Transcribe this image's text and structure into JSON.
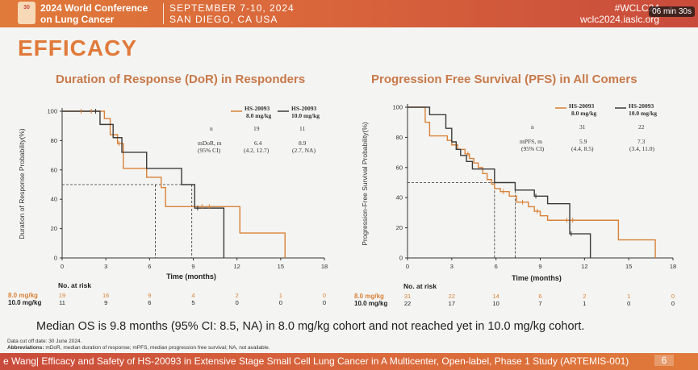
{
  "header": {
    "logo_text": "30",
    "conference_title": "2024 World Conference on Lung Cancer",
    "dates": "SEPTEMBER 7-10, 2024",
    "location": "SAN DIEGO, CA USA",
    "hashtag": "#WCLC24",
    "website": "wclc2024.iaslc.org",
    "timer": "06 min 30s"
  },
  "slide_title": "EFFICACY",
  "colors": {
    "orange": "#d8823a",
    "dark": "#3b3b3b",
    "accent": "#e07a3a"
  },
  "dor": {
    "title": "Duration of Response (DoR) in Responders",
    "y_label": "Duration of Response Probability(%)",
    "x_label": "Time (months)",
    "table": {
      "col1": "HS-20093\n8.0 mg/kg",
      "col1_line1": "HS-20093",
      "col1_line2": "8.0 mg/kg",
      "col2_line1": "HS-20093",
      "col2_line2": "10.0 mg/kg",
      "row_n_label": "n",
      "n1": "19",
      "n2": "11",
      "row_m_label1": "mDoR, m",
      "row_m_label2": "(95% CI)",
      "m1": "6.4",
      "ci1": "(4.2, 12.7)",
      "m2": "8.9",
      "ci2": "(2.7, NA)"
    },
    "risk_title": "No. at risk",
    "risk_rows": [
      {
        "label": "8.0 mg/kg",
        "values": [
          "19",
          "16",
          "9",
          "4",
          "2",
          "1",
          "0"
        ]
      },
      {
        "label": "10.0 mg/kg",
        "values": [
          "11",
          "9",
          "6",
          "5",
          "0",
          "0",
          "0"
        ]
      }
    ]
  },
  "pfs": {
    "title": "Progression Free Survival (PFS) in All Comers",
    "y_label": "Progression-Free Survival Probability(%)",
    "x_label": "Time (months)",
    "table": {
      "col1_line1": "HS-20093",
      "col1_line2": "8.0 mg/kg",
      "col2_line1": "HS-20093",
      "col2_line2": "10.0 mg/kg",
      "row_n_label": "n",
      "n1": "31",
      "n2": "22",
      "row_m_label1": "mPFS, m",
      "row_m_label2": "(95% CI)",
      "m1": "5.9",
      "ci1": "(4.4, 8.5)",
      "m2": "7.3",
      "ci2": "(3.4, 11.0)"
    },
    "risk_title": "No. at risk",
    "risk_rows": [
      {
        "label": "8.0 mg/kg",
        "values": [
          "31",
          "22",
          "14",
          "6",
          "2",
          "1",
          "0"
        ]
      },
      {
        "label": "10.0 mg/kg",
        "values": [
          "22",
          "17",
          "10",
          "7",
          "1",
          "0",
          "0"
        ]
      }
    ]
  },
  "chart_data": [
    {
      "type": "line",
      "title": "Duration of Response (DoR) in Responders",
      "xlabel": "Time (months)",
      "ylabel": "Duration of Response Probability(%)",
      "xlim": [
        0,
        18
      ],
      "ylim": [
        0,
        100
      ],
      "xticks": [
        "0",
        "3",
        "6",
        "9",
        "12",
        "15",
        "18"
      ],
      "yticks": [
        "0",
        "20",
        "40",
        "60",
        "80",
        "100"
      ],
      "median_line": 50,
      "series": [
        {
          "name": "HS-20093 8.0 mg/kg",
          "color": "#d8823a",
          "x": [
            0,
            2.9,
            3.3,
            3.8,
            4.2,
            5.8,
            6.8,
            7.1,
            12.2,
            15.3
          ],
          "y": [
            100,
            95,
            84,
            78,
            61,
            55,
            48,
            35,
            17,
            0
          ]
        },
        {
          "name": "HS-20093 10.0 mg/kg",
          "color": "#3b3b3b",
          "x": [
            0,
            2.6,
            3.5,
            4.1,
            5.8,
            8.2,
            9.1,
            11.1
          ],
          "y": [
            100,
            91,
            82,
            72,
            61,
            50,
            34,
            0
          ]
        }
      ],
      "censor_x_orange": [
        1.3,
        2.0,
        3.9,
        9.6,
        10.1
      ],
      "censor_x_dark": [
        2.3,
        9.3
      ],
      "median_x": {
        "orange": 6.4,
        "dark": 8.9
      }
    },
    {
      "type": "line",
      "title": "Progression Free Survival (PFS) in All Comers",
      "xlabel": "Time (months)",
      "ylabel": "Progression-Free Survival Probability(%)",
      "xlim": [
        0,
        18
      ],
      "ylim": [
        0,
        100
      ],
      "xticks": [
        "0",
        "3",
        "6",
        "9",
        "12",
        "15",
        "18"
      ],
      "yticks": [
        "0",
        "20",
        "40",
        "60",
        "80",
        "100"
      ],
      "median_line": 50,
      "series": [
        {
          "name": "HS-20093 8.0 mg/kg",
          "color": "#d8823a",
          "x": [
            0,
            1.2,
            1.5,
            2.7,
            3.0,
            3.4,
            3.9,
            4.2,
            4.5,
            4.8,
            5.1,
            5.4,
            5.7,
            5.9,
            6.3,
            6.9,
            7.4,
            8.2,
            8.6,
            9.0,
            9.5,
            10.2,
            14.3,
            16.8
          ],
          "y": [
            100,
            90,
            81,
            78,
            75,
            72,
            69,
            66,
            63,
            60,
            56,
            52,
            49,
            46,
            44,
            41,
            37,
            34,
            31,
            28,
            25,
            25,
            12,
            0
          ]
        },
        {
          "name": "HS-20093 10.0 mg/kg",
          "color": "#3b3b3b",
          "x": [
            0,
            1.5,
            2.6,
            3.0,
            3.3,
            3.6,
            4.0,
            4.4,
            5.9,
            7.3,
            8.6,
            9.5,
            11.0,
            12.4
          ],
          "y": [
            100,
            95,
            86,
            77,
            72,
            68,
            64,
            59,
            50,
            45,
            41,
            36,
            16,
            0
          ]
        }
      ],
      "censor_x_orange": [
        4.1,
        6.5,
        7.8,
        8.8,
        10.8,
        11.2
      ],
      "censor_x_dark": [
        8.7,
        11.1
      ],
      "median_x": {
        "orange": 5.9,
        "dark": 7.3
      }
    }
  ],
  "median_os_text": "Median OS is 9.8 months (95% CI: 8.5, NA) in 8.0 mg/kg cohort and not reached yet in 10.0 mg/kg cohort.",
  "footnotes": {
    "cutoff": "Data cut off date: 30 June 2024.",
    "abbr_label": "Abbreviations:",
    "abbr_text": " mDoR, median duration of response; mPFS, median progression free survival; NA, not available."
  },
  "footer": {
    "citation": "e Wang| Efficacy and Safety of HS-20093 in Extensive Stage Small Cell Lung Cancer in A Multicenter, Open-label, Phase 1 Study (ARTEMIS-001)",
    "page_number": "6"
  }
}
